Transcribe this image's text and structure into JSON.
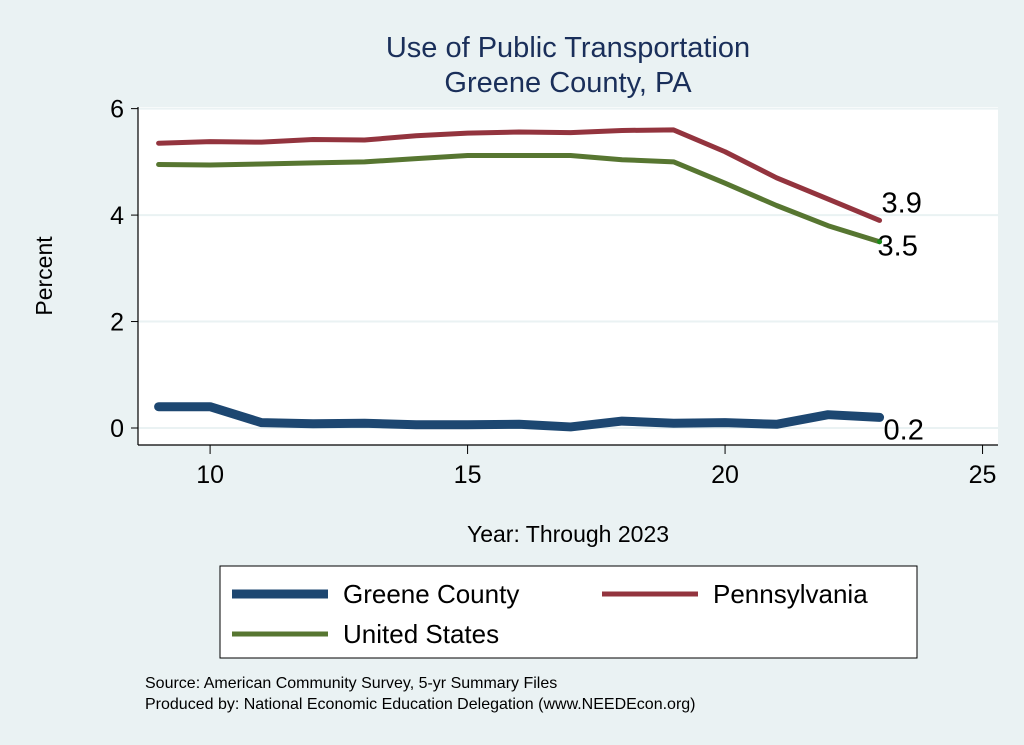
{
  "chart_data": {
    "type": "line",
    "title": "Use of Public Transportation",
    "subtitle": "Greene County, PA",
    "xlabel": "Year: Through 2023",
    "ylabel": "Percent",
    "xlim": [
      8.6,
      25.3
    ],
    "ylim": [
      0,
      6.35
    ],
    "xticks": [
      10,
      15,
      20,
      25
    ],
    "yticks": [
      0,
      2,
      4,
      6
    ],
    "grid": true,
    "x": [
      9,
      10,
      11,
      12,
      13,
      14,
      15,
      16,
      17,
      18,
      19,
      20,
      21,
      22,
      23
    ],
    "series": [
      {
        "name": "Greene County",
        "color": "#1d4771",
        "width": 9,
        "end_label": "0.2",
        "values": [
          0.4,
          0.4,
          0.1,
          0.08,
          0.09,
          0.06,
          0.06,
          0.07,
          0.02,
          0.13,
          0.09,
          0.1,
          0.07,
          0.25,
          0.2
        ]
      },
      {
        "name": "Pennsylvania",
        "color": "#93343e",
        "width": 5,
        "end_label": "3.9",
        "values": [
          5.35,
          5.38,
          5.37,
          5.42,
          5.41,
          5.49,
          5.54,
          5.56,
          5.55,
          5.59,
          5.6,
          5.19,
          4.7,
          4.3,
          3.9
        ]
      },
      {
        "name": "United States",
        "color": "#577631",
        "width": 5,
        "end_label": "3.5",
        "values": [
          4.95,
          4.94,
          4.96,
          4.98,
          5.0,
          5.06,
          5.12,
          5.12,
          5.12,
          5.04,
          5.0,
          4.6,
          4.18,
          3.8,
          3.5
        ]
      }
    ],
    "legend_position": "bottom",
    "notes": [
      "Source: American Community Survey, 5-yr Summary Files",
      "Produced by: National Economic Education Delegation (www.NEEDEcon.org)"
    ]
  }
}
